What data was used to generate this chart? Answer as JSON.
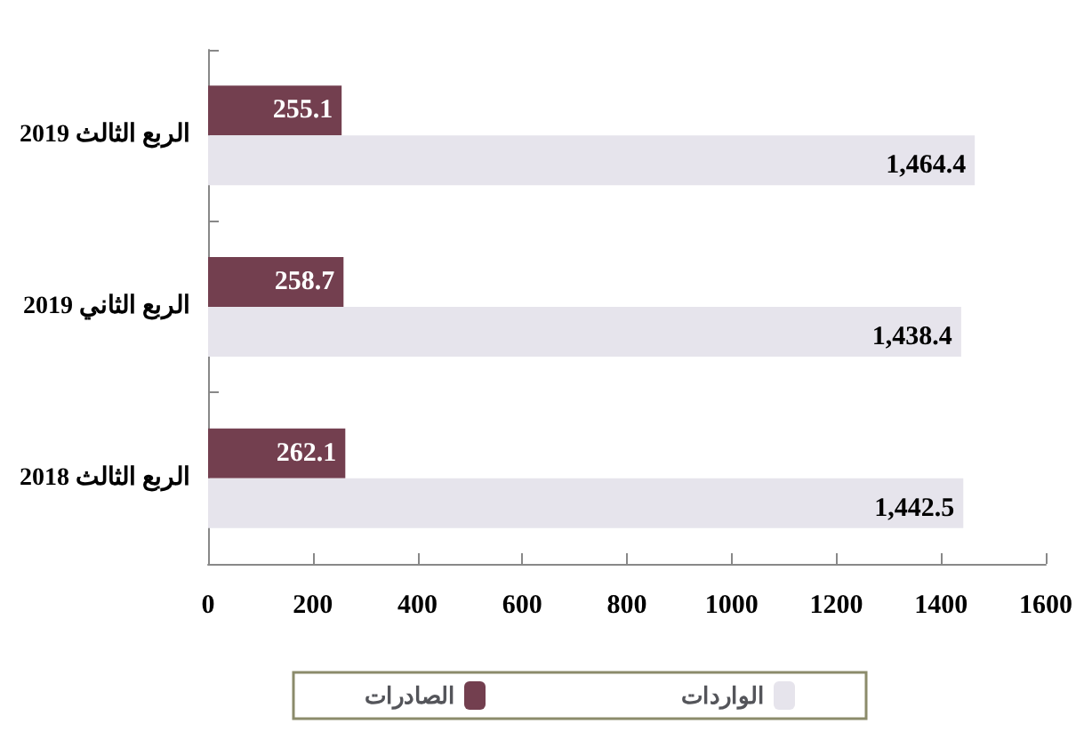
{
  "chart_data": {
    "type": "bar",
    "orientation": "horizontal",
    "categories": [
      "الربع الثالث 2019",
      "الربع الثاني 2019",
      "الربع الثالث 2018"
    ],
    "series": [
      {
        "name": "الصادرات",
        "color": "#733f4f",
        "values": [
          255.1,
          258.7,
          262.1
        ],
        "value_labels": [
          "255.1",
          "258.7",
          "262.1"
        ]
      },
      {
        "name": "الواردات",
        "color": "#e6e4ec",
        "values": [
          1464.4,
          1438.4,
          1442.5
        ],
        "value_labels": [
          "1,464.4",
          "1,438.4",
          "1,442.5"
        ]
      }
    ],
    "xlim": [
      0,
      1600
    ],
    "xticks": [
      0,
      200,
      400,
      600,
      800,
      1000,
      1200,
      1400,
      1600
    ],
    "grid": false,
    "legend": "bottom"
  }
}
